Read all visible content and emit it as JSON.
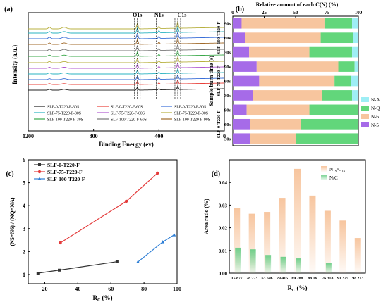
{
  "chart_data": [
    {
      "panel": "(a)",
      "type": "line",
      "xlabel": "Binding Energy (ev)",
      "ylabel": "Intensity (a.u.)",
      "xlim": [
        1200,
        0
      ],
      "xticks": [
        1200,
        800,
        400,
        0
      ],
      "x_reversed": true,
      "peak_labels": [
        {
          "label": "O1s",
          "x": 532
        },
        {
          "label": "N1s",
          "x": 400
        },
        {
          "label": "C1s",
          "x": 285
        }
      ],
      "legend": {
        "placement": "bottom",
        "columns": 3
      },
      "series": [
        {
          "name": "SLF-0-T220-F-30S",
          "color": "#222222"
        },
        {
          "name": "SLF-0-T220-F-60S",
          "color": "#e8403a"
        },
        {
          "name": "SLF-0-T220-F-90S",
          "color": "#3a6fd8"
        },
        {
          "name": "SLF-75-T220-F-30S",
          "color": "#2ab3c0"
        },
        {
          "name": "SLF-75-T220-F-60S",
          "color": "#b05ad0"
        },
        {
          "name": "SLF-75-T220-F-90S",
          "color": "#b8b040"
        },
        {
          "name": "SLF-100-T220-F-30S",
          "color": "#3aa84a"
        },
        {
          "name": "SLF-100-T220-F-60S",
          "color": "#777777"
        },
        {
          "name": "SLF-100-T220-F-90S",
          "color": "#a06a2a"
        }
      ]
    },
    {
      "panel": "(b)",
      "type": "bar",
      "orientation": "horizontal",
      "stacked": true,
      "xlabel": "Relative amount of each C(N) (%)",
      "ylabel": "Sample burn time (s)",
      "xlim": [
        0,
        100
      ],
      "xticks": [
        0,
        25,
        50,
        75,
        100
      ],
      "groups": [
        "SLF-0-T220-F",
        "SLF-75-T220-F",
        "SLF-100-T220-F"
      ],
      "categories": [
        "30s",
        "60s",
        "90s",
        "30s",
        "60s",
        "90s",
        "30s",
        "60s",
        "90s"
      ],
      "series": [
        {
          "name": "N-5",
          "color": "#a66be8",
          "values": [
            14,
            14,
            11,
            16,
            21,
            19,
            13,
            10,
            7
          ]
        },
        {
          "name": "N-6",
          "color": "#f7c59e",
          "values": [
            36,
            40,
            50,
            55,
            60,
            65,
            48,
            60,
            66
          ]
        },
        {
          "name": "N-Q",
          "color": "#62d67b",
          "values": [
            50,
            46,
            39,
            24,
            13,
            13,
            34,
            26,
            22
          ]
        },
        {
          "name": "N-A",
          "color": "#9eeef5",
          "values": [
            0,
            0,
            0,
            5,
            6,
            3,
            5,
            4,
            5
          ]
        }
      ],
      "legend": {
        "placement": "right",
        "order": [
          "N-A",
          "N-Q",
          "N-6",
          "N-5"
        ]
      }
    },
    {
      "panel": "(c)",
      "type": "line",
      "xlabel": "R",
      "xlabel_sub": "C",
      "xlabel_unit": "(%)",
      "ylabel": "(N5+N6) / (NQ+NA)",
      "xlim": [
        10,
        100
      ],
      "ylim": [
        0.6,
        6
      ],
      "xticks": [
        20,
        40,
        60,
        80,
        100
      ],
      "yticks": [
        1,
        2,
        3,
        4,
        5,
        6
      ],
      "legend": {
        "placement": "top-left"
      },
      "series": [
        {
          "name": "SLF-0-T220-F",
          "color": "#333333",
          "marker": "square",
          "x": [
            15.877,
            28.773,
            63.696
          ],
          "y": [
            1.06,
            1.19,
            1.56
          ]
        },
        {
          "name": "SLF-75-T220-F",
          "color": "#e43b3b",
          "marker": "circle",
          "x": [
            29.415,
            69.288,
            88.16
          ],
          "y": [
            2.38,
            4.19,
            5.42
          ]
        },
        {
          "name": "SLF-100-T220-F",
          "color": "#2f7fd6",
          "marker": "triangle",
          "x": [
            76.318,
            91.325,
            98.213
          ],
          "y": [
            1.55,
            2.42,
            2.73
          ]
        }
      ]
    },
    {
      "panel": "(d)",
      "type": "bar",
      "xlabel": "R",
      "xlabel_sub": "C",
      "xlabel_unit": "(%)",
      "ylabel": "Area ratio (%)",
      "ylim": [
        0,
        0.05
      ],
      "yticks": [
        "0.00",
        "0.01",
        "0.02",
        "0.03",
        "0.04"
      ],
      "categories": [
        "15.877",
        "28.773",
        "63.696",
        "29.415",
        "69.288",
        "88.16",
        "76.318",
        "91.325",
        "98.213"
      ],
      "legend": {
        "placement": "top-right"
      },
      "series": [
        {
          "name": "N1s/C1s",
          "label_main": "N",
          "label_sub1": "1S",
          "label_mid": "/C",
          "label_sub2": "1S",
          "color": "#f7c59e",
          "values": [
            0.0288,
            0.0262,
            0.027,
            0.0332,
            0.046,
            0.0342,
            0.0275,
            0.0232,
            0.0155
          ]
        },
        {
          "name": "N/C",
          "label_main": "N/C",
          "color": "#6fcf8a",
          "values": [
            0.0112,
            0.0105,
            0.008,
            0.0072,
            0.0065,
            0.0,
            0.0045,
            0.0,
            0.0
          ]
        }
      ]
    }
  ]
}
